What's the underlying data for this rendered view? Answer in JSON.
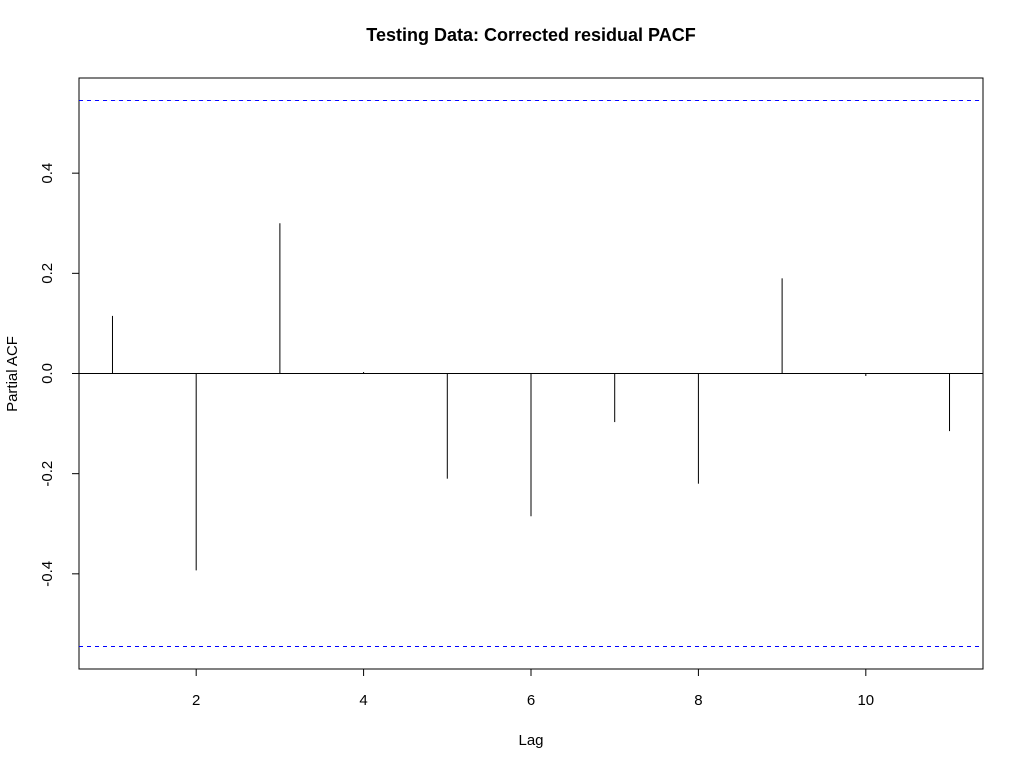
{
  "chart_data": {
    "type": "bar",
    "title": "Testing Data: Corrected residual PACF",
    "xlabel": "Lag",
    "ylabel": "Partial ACF",
    "x": [
      1,
      2,
      3,
      4,
      5,
      6,
      7,
      8,
      9,
      10,
      11
    ],
    "values": [
      0.115,
      -0.393,
      0.3,
      0.003,
      -0.21,
      -0.285,
      -0.097,
      -0.22,
      0.19,
      -0.005,
      -0.115
    ],
    "xlim": [
      0.6,
      11.4
    ],
    "ylim": [
      -0.59,
      0.59
    ],
    "xticks": [
      2,
      4,
      6,
      8,
      10
    ],
    "yticks": [
      -0.4,
      -0.2,
      0.0,
      0.2,
      0.4
    ],
    "ytick_labels": [
      "-0.4",
      "-0.2",
      "0.0",
      "0.2",
      "0.4"
    ],
    "confidence_bound": 0.545,
    "zero_line": true,
    "grid": false,
    "colors": {
      "bars": "#000000",
      "confidence_lines": "#0000ff",
      "axes": "#000000"
    }
  }
}
